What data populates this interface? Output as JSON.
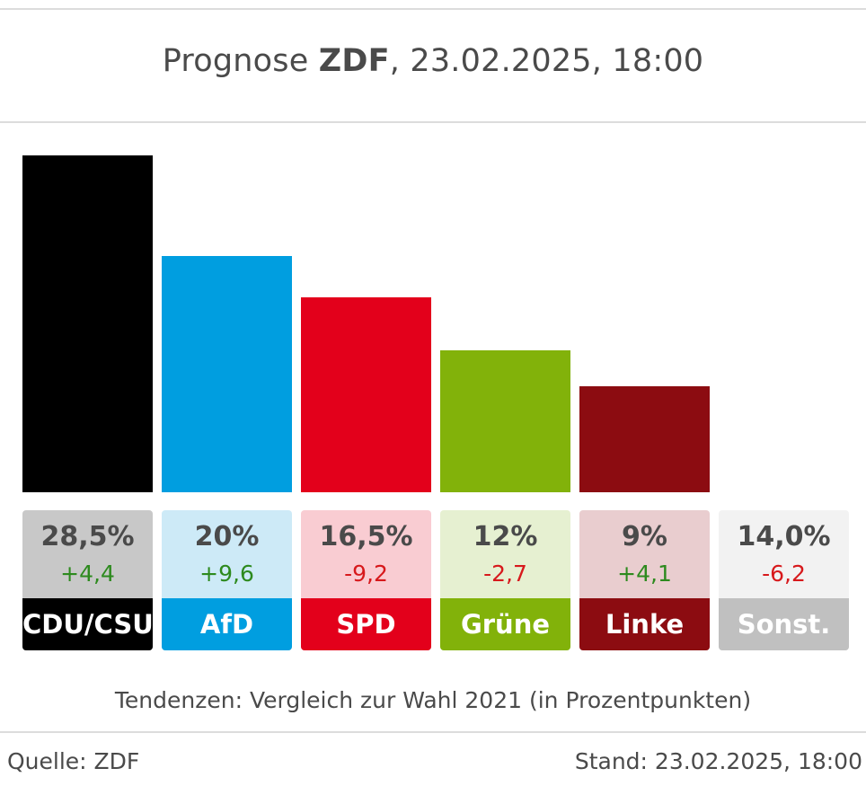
{
  "header": {
    "title_prefix": "Prognose ",
    "title_bold": "ZDF",
    "title_suffix": ", 23.02.2025, 18:00"
  },
  "chart_data": {
    "type": "bar",
    "title": "Prognose ZDF, 23.02.2025, 18:00",
    "categories": [
      "CDU/CSU",
      "AfD",
      "SPD",
      "Grüne",
      "Linke",
      "Sonst."
    ],
    "values": [
      28.5,
      20,
      16.5,
      12,
      9,
      14.0
    ],
    "value_labels": [
      "28,5%",
      "20%",
      "16,5%",
      "12%",
      "9%",
      "14,0%"
    ],
    "changes": [
      4.4,
      9.6,
      -9.2,
      -2.7,
      4.1,
      -6.2
    ],
    "change_labels": [
      "+4,4",
      "+9,6",
      "-9,2",
      "-2,7",
      "+4,1",
      "-6,2"
    ],
    "colors": [
      "#000000",
      "#009ee0",
      "#e3001b",
      "#82b20a",
      "#8c0c11",
      "#c0c0c0"
    ],
    "card_colors": [
      "#c8c8c8",
      "#cdeaf7",
      "#f9ccd2",
      "#e6f0d1",
      "#e9cdcf",
      "#f2f2f2"
    ],
    "positive_color": "#2d8a1e",
    "negative_color": "#d7191c",
    "bar_drawn": [
      true,
      true,
      true,
      true,
      true,
      false
    ],
    "ylim": [
      0,
      28.5
    ],
    "note": "Tendenzen: Vergleich zur Wahl 2021 (in Prozentpunkten)"
  },
  "footer": {
    "source": "Quelle: ZDF",
    "status": "Stand: 23.02.2025, 18:00"
  }
}
